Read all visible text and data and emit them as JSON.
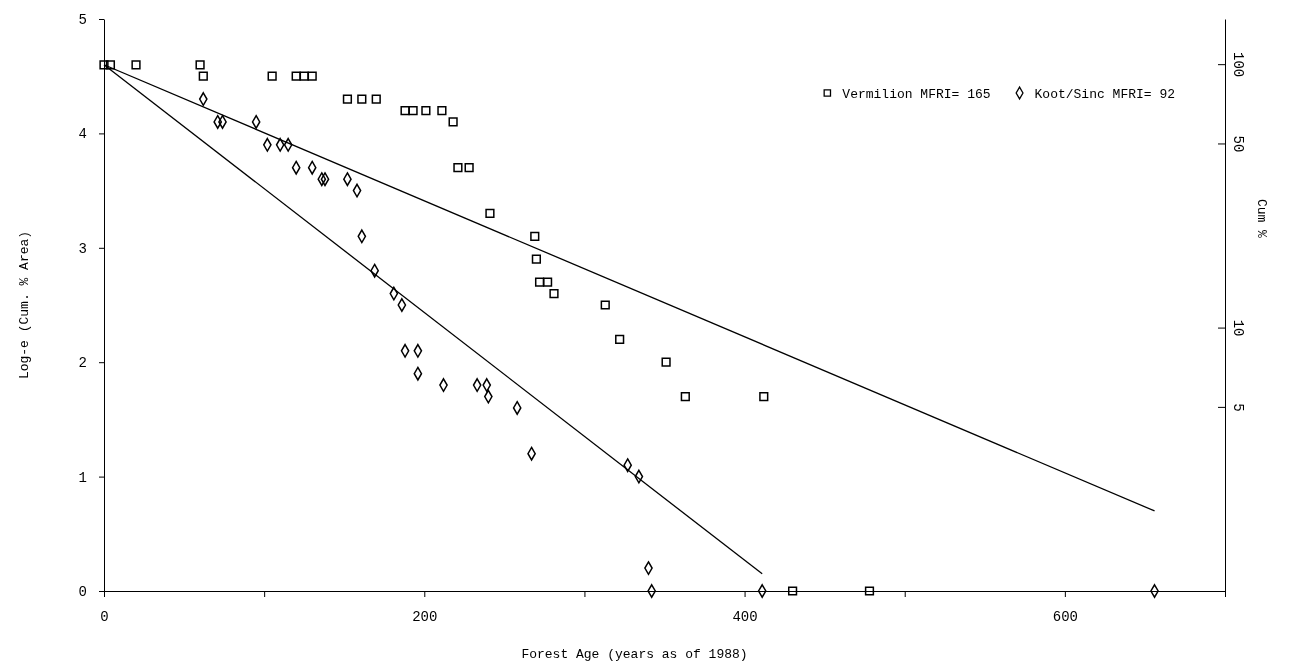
{
  "chart_data": {
    "type": "scatter",
    "xlabel": "Forest Age (years as of 1988)",
    "ylabel": "Log-e (Cum. % Area)",
    "y2label": "Cum %",
    "xlim": [
      0,
      700
    ],
    "xticks": [
      0,
      {
        "value": 100,
        "label": null
      },
      200,
      {
        "value": 300,
        "label": null
      },
      400,
      {
        "value": 500,
        "label": null
      },
      600,
      {
        "value": 700,
        "label": null
      }
    ],
    "ylim": [
      0,
      5
    ],
    "yticks": [
      0,
      1,
      2,
      3,
      4,
      5
    ],
    "y2lim": [
      1,
      148.4
    ],
    "y2ticks": [
      100,
      50,
      10,
      5
    ],
    "log": "y2",
    "legend": "top right",
    "grid": false,
    "series": [
      {
        "name": "Vermilion MFRI= 165",
        "color": "#000000",
        "marker": "square",
        "x": [
          0,
          4,
          20,
          60,
          62,
          105,
          120,
          125,
          130,
          152,
          161,
          170,
          188,
          193,
          201,
          211,
          218,
          221,
          228,
          241,
          269,
          270,
          272,
          277,
          281,
          313,
          322,
          351,
          363,
          412,
          430,
          478
        ],
        "values": [
          4.6,
          4.6,
          4.6,
          4.6,
          4.5,
          4.5,
          4.5,
          4.5,
          4.5,
          4.3,
          4.3,
          4.3,
          4.2,
          4.2,
          4.2,
          4.2,
          4.1,
          3.7,
          3.7,
          3.3,
          3.1,
          2.9,
          2.7,
          2.7,
          2.6,
          2.5,
          2.2,
          2.0,
          1.7,
          1.7,
          0,
          0
        ]
      },
      {
        "name": "Koot/Sinc MFRI= 92",
        "color": "#000000",
        "marker": "diamond",
        "x": [
          62,
          71,
          74,
          95,
          102,
          110,
          115,
          120,
          130,
          136,
          138,
          152,
          158,
          161,
          169,
          181,
          186,
          188,
          196,
          196,
          212,
          233,
          239,
          240,
          258,
          267,
          327,
          334,
          340,
          342,
          411,
          656
        ],
        "values": [
          4.3,
          4.1,
          4.1,
          4.1,
          3.9,
          3.9,
          3.9,
          3.7,
          3.7,
          3.6,
          3.6,
          3.6,
          3.5,
          3.1,
          2.8,
          2.6,
          2.5,
          2.1,
          2.1,
          1.9,
          1.8,
          1.8,
          1.8,
          1.7,
          1.6,
          1.2,
          1.1,
          1.0,
          0.2,
          0,
          0,
          0
        ]
      },
      {
        "type": "line",
        "color": "#000000",
        "marker": "none",
        "x": [
          0,
          656
        ],
        "values": [
          4.6,
          0.7
        ]
      },
      {
        "type": "line",
        "color": "#000000",
        "marker": "none",
        "x": [
          0,
          411
        ],
        "values": [
          4.6,
          0.15
        ]
      }
    ]
  }
}
